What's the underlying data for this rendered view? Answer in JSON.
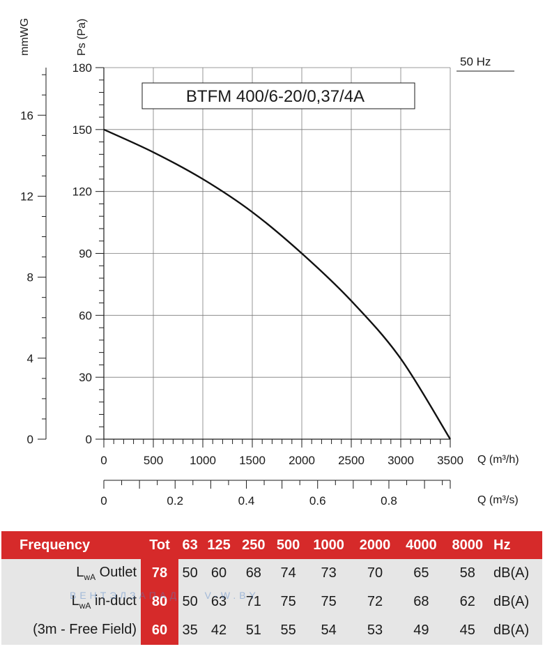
{
  "chart_data": {
    "type": "line",
    "title": "BTFM 400/6-20/0,37/4A",
    "frequency_label": "50 Hz",
    "ylabel_left": "mmWG",
    "ylabel_right": "Ps (Pa)",
    "xlabel_top": "Q (m³/h)",
    "xlabel_bottom": "Q (m³/s)",
    "xlim": [
      0,
      3500
    ],
    "ylim": [
      0,
      180
    ],
    "x_ticks": [
      0,
      500,
      1000,
      1500,
      2000,
      2500,
      3000,
      3500
    ],
    "y_ticks": [
      0,
      30,
      60,
      90,
      120,
      150,
      180
    ],
    "mmwg_ticks": [
      0,
      4,
      8,
      12,
      16
    ],
    "mmwg_lim": [
      0,
      18.35
    ],
    "m3s_ticks": [
      "0",
      "0.2",
      "0.4",
      "0.6",
      "0.8"
    ],
    "m3s_values": [
      0,
      0.2,
      0.4,
      0.6,
      0.8
    ],
    "m3s_lim": [
      0,
      0.9722
    ],
    "grid": true,
    "series": [
      {
        "x": [
          0,
          500,
          1000,
          1500,
          2000,
          2500,
          3000,
          3500
        ],
        "y": [
          150,
          139,
          126,
          110,
          90,
          67,
          39,
          0
        ]
      }
    ]
  },
  "table": {
    "header": {
      "label": "Frequency",
      "tot": "Tot",
      "bands": [
        "63",
        "125",
        "250",
        "500",
        "1000",
        "2000",
        "4000",
        "8000"
      ],
      "unit": "Hz"
    },
    "rows": [
      {
        "label_main": "L",
        "label_sub": "wA",
        "label_rest": " Outlet",
        "tot": "78",
        "values": [
          "50",
          "60",
          "68",
          "74",
          "73",
          "70",
          "65",
          "58"
        ],
        "unit": "dB(A)"
      },
      {
        "label_main": "L",
        "label_sub": "wA",
        "label_rest": " in-duct",
        "tot": "80",
        "values": [
          "50",
          "63",
          "71",
          "75",
          "75",
          "72",
          "68",
          "62"
        ],
        "unit": "dB(A)"
      },
      {
        "label_main": "(3m - Free Field)",
        "label_sub": "",
        "label_rest": "",
        "tot": "60",
        "values": [
          "35",
          "42",
          "51",
          "55",
          "54",
          "53",
          "49",
          "45"
        ],
        "unit": "dB(A)"
      }
    ]
  },
  "watermark": "ВЕНТЭЛЗАПАД    V-W.BY"
}
